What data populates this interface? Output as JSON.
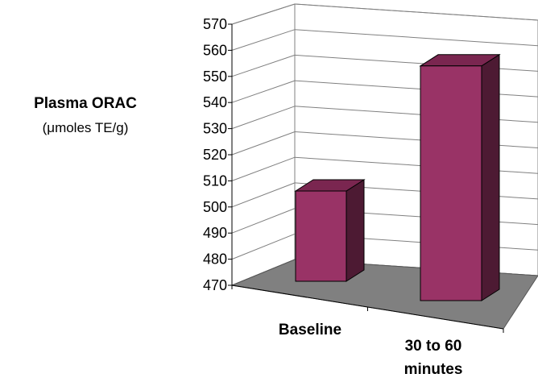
{
  "chart_data": {
    "type": "bar",
    "title": "",
    "ylabel": "Plasma ORAC",
    "yunit": "(μmoles TE/g)",
    "categories": [
      "Baseline",
      "30 to 60 minutes"
    ],
    "category_lines": [
      [
        "Baseline"
      ],
      [
        "30 to 60",
        "minutes"
      ]
    ],
    "values": [
      505,
      561
    ],
    "ylim": [
      470,
      570
    ],
    "yticks": [
      "470",
      "480",
      "490",
      "500",
      "510",
      "520",
      "530",
      "540",
      "550",
      "560",
      "570"
    ],
    "grid": true,
    "three_d": true,
    "colors": {
      "bar_front": "#993366",
      "bar_top": "#7a2650",
      "bar_side": "#4d1a33",
      "floor": "#808080",
      "grid": "#808080"
    }
  }
}
